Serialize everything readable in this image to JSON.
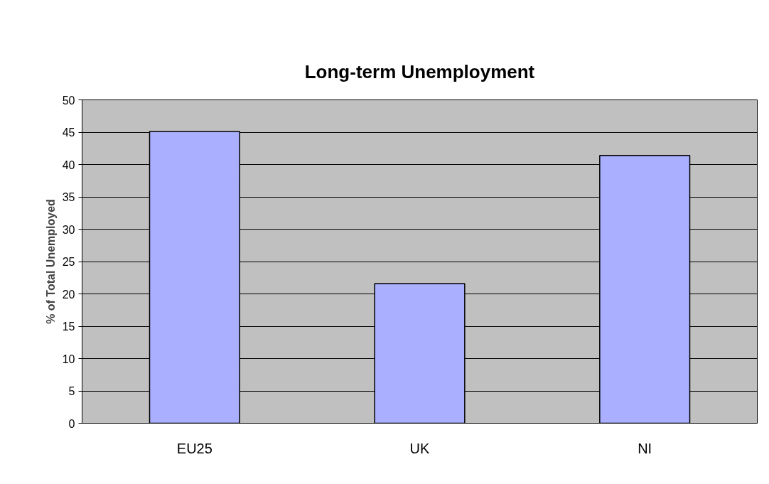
{
  "chart_data": {
    "type": "bar",
    "title": "Long-term Unemployment",
    "ylabel": "% of Total Unemployed",
    "categories": [
      "EU25",
      "UK",
      "NI"
    ],
    "values": [
      45.1,
      21.6,
      41.4
    ],
    "color": "#aab0ff",
    "ylim": [
      0,
      50
    ],
    "yticks": [
      0,
      5,
      10,
      15,
      20,
      25,
      30,
      35,
      40,
      45,
      50
    ],
    "grid": "y"
  }
}
